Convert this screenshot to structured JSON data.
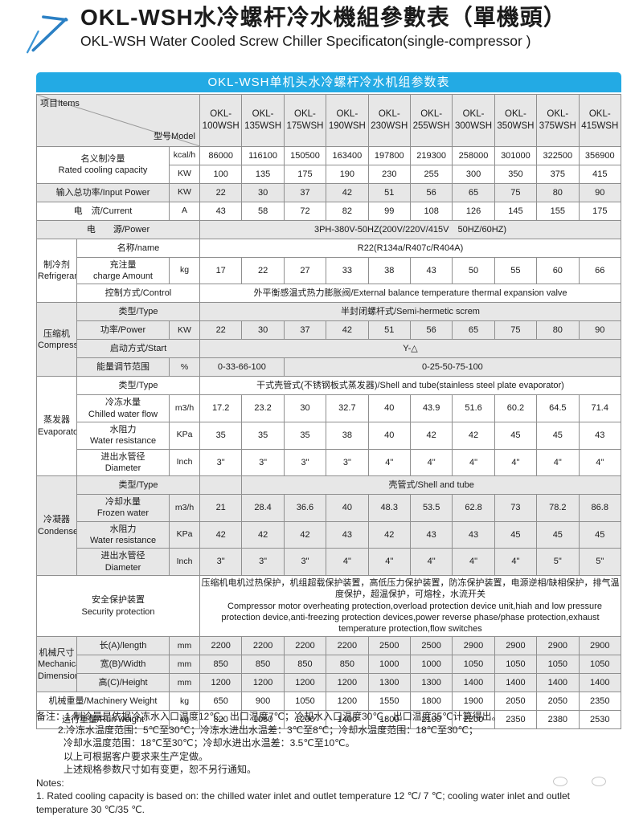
{
  "header": {
    "title_cn": "OKL-WSH水冷螺杆冷水機組參數表（單機頭）",
    "title_en": "OKL-WSH Water Cooled Screw Chiller Specificaton(single-compressor )",
    "logo_color": "#2b80c4"
  },
  "table": {
    "banner": "OKL-WSH单机头水冷螺杆冷水机组参数表",
    "banner_color": "#23aae4",
    "corner": {
      "item_label": "项目Items",
      "model_label": "型号Model"
    },
    "models": [
      "OKL-100WSH",
      "OKL-135WSH",
      "OKL-175WSH",
      "OKL-190WSH",
      "OKL-230WSH",
      "OKL-255WSH",
      "OKL-300WSH",
      "OKL-350WSH",
      "OKL-375WSH",
      "OKL-415WSH"
    ],
    "rows": [
      {
        "shade": false,
        "cells": [
          {
            "t": "名义制冷量\nRated cooling capacity",
            "c": 2,
            "r": 2,
            "k": "label"
          },
          {
            "t": "kcal/h",
            "k": "unit"
          },
          {
            "t": "86000"
          },
          {
            "t": "116100"
          },
          {
            "t": "150500"
          },
          {
            "t": "163400"
          },
          {
            "t": "197800"
          },
          {
            "t": "219300"
          },
          {
            "t": "258000"
          },
          {
            "t": "301000"
          },
          {
            "t": "322500"
          },
          {
            "t": "356900"
          }
        ]
      },
      {
        "shade": false,
        "cells": [
          {
            "t": "KW",
            "k": "unit"
          },
          {
            "t": "100"
          },
          {
            "t": "135"
          },
          {
            "t": "175"
          },
          {
            "t": "190"
          },
          {
            "t": "230"
          },
          {
            "t": "255"
          },
          {
            "t": "300"
          },
          {
            "t": "350"
          },
          {
            "t": "375"
          },
          {
            "t": "415"
          }
        ]
      },
      {
        "shade": true,
        "cells": [
          {
            "t": "输入总功率/Input Power",
            "c": 2,
            "k": "label"
          },
          {
            "t": "KW",
            "k": "unit"
          },
          {
            "t": "22"
          },
          {
            "t": "30"
          },
          {
            "t": "37"
          },
          {
            "t": "42"
          },
          {
            "t": "51"
          },
          {
            "t": "56"
          },
          {
            "t": "65"
          },
          {
            "t": "75"
          },
          {
            "t": "80"
          },
          {
            "t": "90"
          }
        ]
      },
      {
        "shade": false,
        "cells": [
          {
            "t": "电　流/Current",
            "c": 2,
            "k": "label"
          },
          {
            "t": "A",
            "k": "unit"
          },
          {
            "t": "43"
          },
          {
            "t": "58"
          },
          {
            "t": "72"
          },
          {
            "t": "82"
          },
          {
            "t": "99"
          },
          {
            "t": "108"
          },
          {
            "t": "126"
          },
          {
            "t": "145"
          },
          {
            "t": "155"
          },
          {
            "t": "175"
          }
        ]
      },
      {
        "shade": true,
        "cells": [
          {
            "t": "电　　源/Power",
            "c": 3,
            "k": "label"
          },
          {
            "t": "3PH-380V-50HZ(200V/220V/415V　50HZ/60HZ)",
            "c": 10,
            "k": "span"
          }
        ]
      },
      {
        "shade": false,
        "cells": [
          {
            "t": "制冷剂\nRefrigerant",
            "r": 3,
            "k": "group"
          },
          {
            "t": "名称/name",
            "c": 2,
            "k": "label"
          },
          {
            "t": "R22(R134a/R407c/R404A)",
            "c": 10,
            "k": "span"
          }
        ]
      },
      {
        "shade": false,
        "cells": [
          {
            "t": "充注量\ncharge Amount",
            "k": "label"
          },
          {
            "t": "kg",
            "k": "unit"
          },
          {
            "t": "17"
          },
          {
            "t": "22"
          },
          {
            "t": "27"
          },
          {
            "t": "33"
          },
          {
            "t": "38"
          },
          {
            "t": "43"
          },
          {
            "t": "50"
          },
          {
            "t": "55"
          },
          {
            "t": "60"
          },
          {
            "t": "66"
          }
        ]
      },
      {
        "shade": false,
        "cells": [
          {
            "t": "控制方式/Control",
            "c": 2,
            "k": "label"
          },
          {
            "t": "外平衡感温式热力膨胀阀/External balance temperature thermal expansion valve",
            "c": 10,
            "k": "span"
          }
        ]
      },
      {
        "shade": true,
        "cells": [
          {
            "t": "压缩机\nCompressor",
            "r": 4,
            "k": "group"
          },
          {
            "t": "类型/Type",
            "c": 2,
            "k": "label"
          },
          {
            "t": "半封闭螺杆式/Semi-hermetic screm",
            "c": 10,
            "k": "span"
          }
        ]
      },
      {
        "shade": true,
        "cells": [
          {
            "t": "功率/Power",
            "k": "label"
          },
          {
            "t": "KW",
            "k": "unit"
          },
          {
            "t": "22"
          },
          {
            "t": "30"
          },
          {
            "t": "37"
          },
          {
            "t": "42"
          },
          {
            "t": "51"
          },
          {
            "t": "56"
          },
          {
            "t": "65"
          },
          {
            "t": "75"
          },
          {
            "t": "80"
          },
          {
            "t": "90"
          }
        ]
      },
      {
        "shade": true,
        "cells": [
          {
            "t": "启动方式/Start",
            "c": 2,
            "k": "label"
          },
          {
            "t": "Y-△",
            "c": 10,
            "k": "span"
          }
        ]
      },
      {
        "shade": true,
        "cells": [
          {
            "t": "能量调节范围",
            "k": "label"
          },
          {
            "t": "%",
            "k": "unit"
          },
          {
            "t": "0-33-66-100",
            "c": 2,
            "k": "span"
          },
          {
            "t": "0-25-50-75-100",
            "c": 8,
            "k": "span"
          }
        ]
      },
      {
        "shade": false,
        "cells": [
          {
            "t": "蒸发器\nEvaporator",
            "r": 4,
            "k": "group"
          },
          {
            "t": "类型/Type",
            "c": 2,
            "k": "label"
          },
          {
            "t": "干式壳管式(不锈钢板式蒸发器)/Shell and tube(stainless steel plate evaporator)",
            "c": 10,
            "k": "span"
          }
        ]
      },
      {
        "shade": false,
        "cells": [
          {
            "t": "冷冻水量\nChilled water flow",
            "k": "label"
          },
          {
            "t": "m3/h",
            "k": "unit"
          },
          {
            "t": "17.2"
          },
          {
            "t": "23.2"
          },
          {
            "t": "30"
          },
          {
            "t": "32.7"
          },
          {
            "t": "40"
          },
          {
            "t": "43.9"
          },
          {
            "t": "51.6"
          },
          {
            "t": "60.2"
          },
          {
            "t": "64.5"
          },
          {
            "t": "71.4"
          }
        ]
      },
      {
        "shade": false,
        "cells": [
          {
            "t": "水阻力\nWater resistance",
            "k": "label"
          },
          {
            "t": "KPa",
            "k": "unit"
          },
          {
            "t": "35"
          },
          {
            "t": "35"
          },
          {
            "t": "35"
          },
          {
            "t": "38"
          },
          {
            "t": "40"
          },
          {
            "t": "42"
          },
          {
            "t": "42"
          },
          {
            "t": "45"
          },
          {
            "t": "45"
          },
          {
            "t": "43"
          }
        ]
      },
      {
        "shade": false,
        "cells": [
          {
            "t": "进出水管径\nDiameter",
            "k": "label"
          },
          {
            "t": "Inch",
            "k": "unit"
          },
          {
            "t": "3\""
          },
          {
            "t": "3\""
          },
          {
            "t": "3\""
          },
          {
            "t": "3\""
          },
          {
            "t": "4\""
          },
          {
            "t": "4\""
          },
          {
            "t": "4\""
          },
          {
            "t": "4\""
          },
          {
            "t": "4\""
          },
          {
            "t": "4\""
          }
        ]
      },
      {
        "shade": true,
        "cells": [
          {
            "t": "冷凝器\nCondenser",
            "r": 4,
            "k": "group"
          },
          {
            "t": "类型/Type",
            "c": 2,
            "k": "label"
          },
          {
            "t": "",
            "c": 1,
            "k": "span"
          },
          {
            "t": "壳管式/Shell and tube",
            "c": 9,
            "k": "span"
          }
        ]
      },
      {
        "shade": true,
        "cells": [
          {
            "t": "冷却水量\nFrozen water",
            "k": "label"
          },
          {
            "t": "m3/h",
            "k": "unit"
          },
          {
            "t": "21"
          },
          {
            "t": "28.4"
          },
          {
            "t": "36.6"
          },
          {
            "t": "40"
          },
          {
            "t": "48.3"
          },
          {
            "t": "53.5"
          },
          {
            "t": "62.8"
          },
          {
            "t": "73"
          },
          {
            "t": "78.2"
          },
          {
            "t": "86.8"
          }
        ]
      },
      {
        "shade": true,
        "cells": [
          {
            "t": "水阻力\nWater resistance",
            "k": "label"
          },
          {
            "t": "KPa",
            "k": "unit"
          },
          {
            "t": "42"
          },
          {
            "t": "42"
          },
          {
            "t": "42"
          },
          {
            "t": "43"
          },
          {
            "t": "42"
          },
          {
            "t": "43"
          },
          {
            "t": "43"
          },
          {
            "t": "45"
          },
          {
            "t": "45"
          },
          {
            "t": "45"
          }
        ]
      },
      {
        "shade": true,
        "cells": [
          {
            "t": "进出水管径\nDiameter",
            "k": "label"
          },
          {
            "t": "Inch",
            "k": "unit"
          },
          {
            "t": "3\""
          },
          {
            "t": "3\""
          },
          {
            "t": "3\""
          },
          {
            "t": "4\""
          },
          {
            "t": "4\""
          },
          {
            "t": "4\""
          },
          {
            "t": "4\""
          },
          {
            "t": "4\""
          },
          {
            "t": "5\""
          },
          {
            "t": "5\""
          }
        ]
      },
      {
        "shade": false,
        "cells": [
          {
            "t": "安全保护装置\nSecurity protection",
            "c": 3,
            "k": "label"
          },
          {
            "t": "压缩机电机过热保护，机组超载保护装置，高低压力保护装置，防冻保护装置，电源逆相/缺相保护，排气温度保护，超温保护，可熔栓，水流开关\n　Compressor motor overheating protection,overload protection device unit,hiah and low pressure protection device,anti-freezing protection devices,power reverse phase/phase protection,exhaust temperature protection,flow switches",
            "c": 10,
            "k": "spanleft"
          }
        ]
      },
      {
        "shade": true,
        "cells": [
          {
            "t": "机械尺寸\nMechanical\nDimensions",
            "r": 3,
            "k": "group"
          },
          {
            "t": "长(A)/length",
            "k": "label"
          },
          {
            "t": "mm",
            "k": "unit"
          },
          {
            "t": "2200"
          },
          {
            "t": "2200"
          },
          {
            "t": "2200"
          },
          {
            "t": "2200"
          },
          {
            "t": "2500"
          },
          {
            "t": "2500"
          },
          {
            "t": "2900"
          },
          {
            "t": "2900"
          },
          {
            "t": "2900"
          },
          {
            "t": "2900"
          }
        ]
      },
      {
        "shade": true,
        "cells": [
          {
            "t": "宽(B)/Width",
            "k": "label"
          },
          {
            "t": "mm",
            "k": "unit"
          },
          {
            "t": "850"
          },
          {
            "t": "850"
          },
          {
            "t": "850"
          },
          {
            "t": "850"
          },
          {
            "t": "1000"
          },
          {
            "t": "1000"
          },
          {
            "t": "1050"
          },
          {
            "t": "1050"
          },
          {
            "t": "1050"
          },
          {
            "t": "1050"
          }
        ]
      },
      {
        "shade": true,
        "cells": [
          {
            "t": "高(C)/Height",
            "k": "label"
          },
          {
            "t": "mm",
            "k": "unit"
          },
          {
            "t": "1200"
          },
          {
            "t": "1200"
          },
          {
            "t": "1200"
          },
          {
            "t": "1200"
          },
          {
            "t": "1300"
          },
          {
            "t": "1300"
          },
          {
            "t": "1400"
          },
          {
            "t": "1400"
          },
          {
            "t": "1400"
          },
          {
            "t": "1400"
          }
        ]
      },
      {
        "shade": false,
        "cells": [
          {
            "t": "机械重量/Machinery Weight",
            "c": 2,
            "k": "label"
          },
          {
            "t": "kg",
            "k": "unit"
          },
          {
            "t": "650"
          },
          {
            "t": "900"
          },
          {
            "t": "1050"
          },
          {
            "t": "1200"
          },
          {
            "t": "1550"
          },
          {
            "t": "1800"
          },
          {
            "t": "1900"
          },
          {
            "t": "2050"
          },
          {
            "t": "2050"
          },
          {
            "t": "2350"
          }
        ]
      },
      {
        "shade": false,
        "cells": [
          {
            "t": "运行重量/Run weight",
            "c": 2,
            "k": "label"
          },
          {
            "t": "kg",
            "k": "unit"
          },
          {
            "t": "820"
          },
          {
            "t": "1050"
          },
          {
            "t": "1200"
          },
          {
            "t": "1400"
          },
          {
            "t": "1800"
          },
          {
            "t": "2100"
          },
          {
            "t": "2200"
          },
          {
            "t": "2350"
          },
          {
            "t": "2380"
          },
          {
            "t": "2530"
          }
        ]
      }
    ]
  },
  "notes": {
    "lines": [
      {
        "text": "备注：1.制冷量是依据冷冻水入口温度12℃，出口温度7℃；冷却水入口温度30℃，出口温度35℃计算得出。",
        "indent": 0
      },
      {
        "text": "2.冷冻水温度范围：5℃至30℃；冷冻水进出水温差：3℃至8℃；冷却水温度范围：18℃至30℃；",
        "indent": 1
      },
      {
        "text": "冷却水温度范围：18℃至30℃；冷却水进出水温差：3.5℃至10℃。",
        "indent": 2
      },
      {
        "text": "以上可根据客户要求来生产定做。",
        "indent": 2
      },
      {
        "text": "上述规格参数尺寸如有变更，恕不另行通知。",
        "indent": 2
      },
      {
        "text": "Notes:",
        "indent": 0
      },
      {
        "text": "1. Rated cooling capacity is based on: the chilled water inlet and outlet temperature 12 ℃/ 7 ℃; cooling water inlet and outlet temperature 30 ℃/35 ℃.",
        "indent": 0
      }
    ]
  }
}
